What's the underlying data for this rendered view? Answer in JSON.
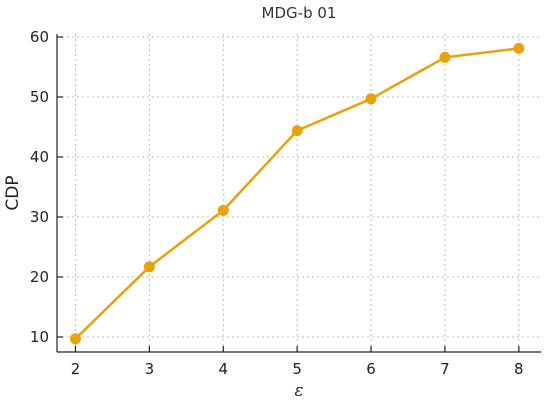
{
  "chart_data": {
    "type": "line",
    "title": "MDG-b 01",
    "xlabel": "ε",
    "ylabel": "CDP",
    "x": [
      2,
      3,
      4,
      5,
      6,
      7,
      8
    ],
    "xticks": [
      "2",
      "3",
      "4",
      "5",
      "6",
      "7",
      "8"
    ],
    "yticks": [
      "10",
      "20",
      "30",
      "40",
      "50",
      "60"
    ],
    "xlim": [
      1.75,
      8.3
    ],
    "ylim": [
      7.5,
      60.5
    ],
    "grid": true,
    "series": [
      {
        "values": [
          9.7,
          21.7,
          31.1,
          44.4,
          49.7,
          56.6,
          58.1
        ],
        "color": "#e8a20c"
      }
    ]
  }
}
